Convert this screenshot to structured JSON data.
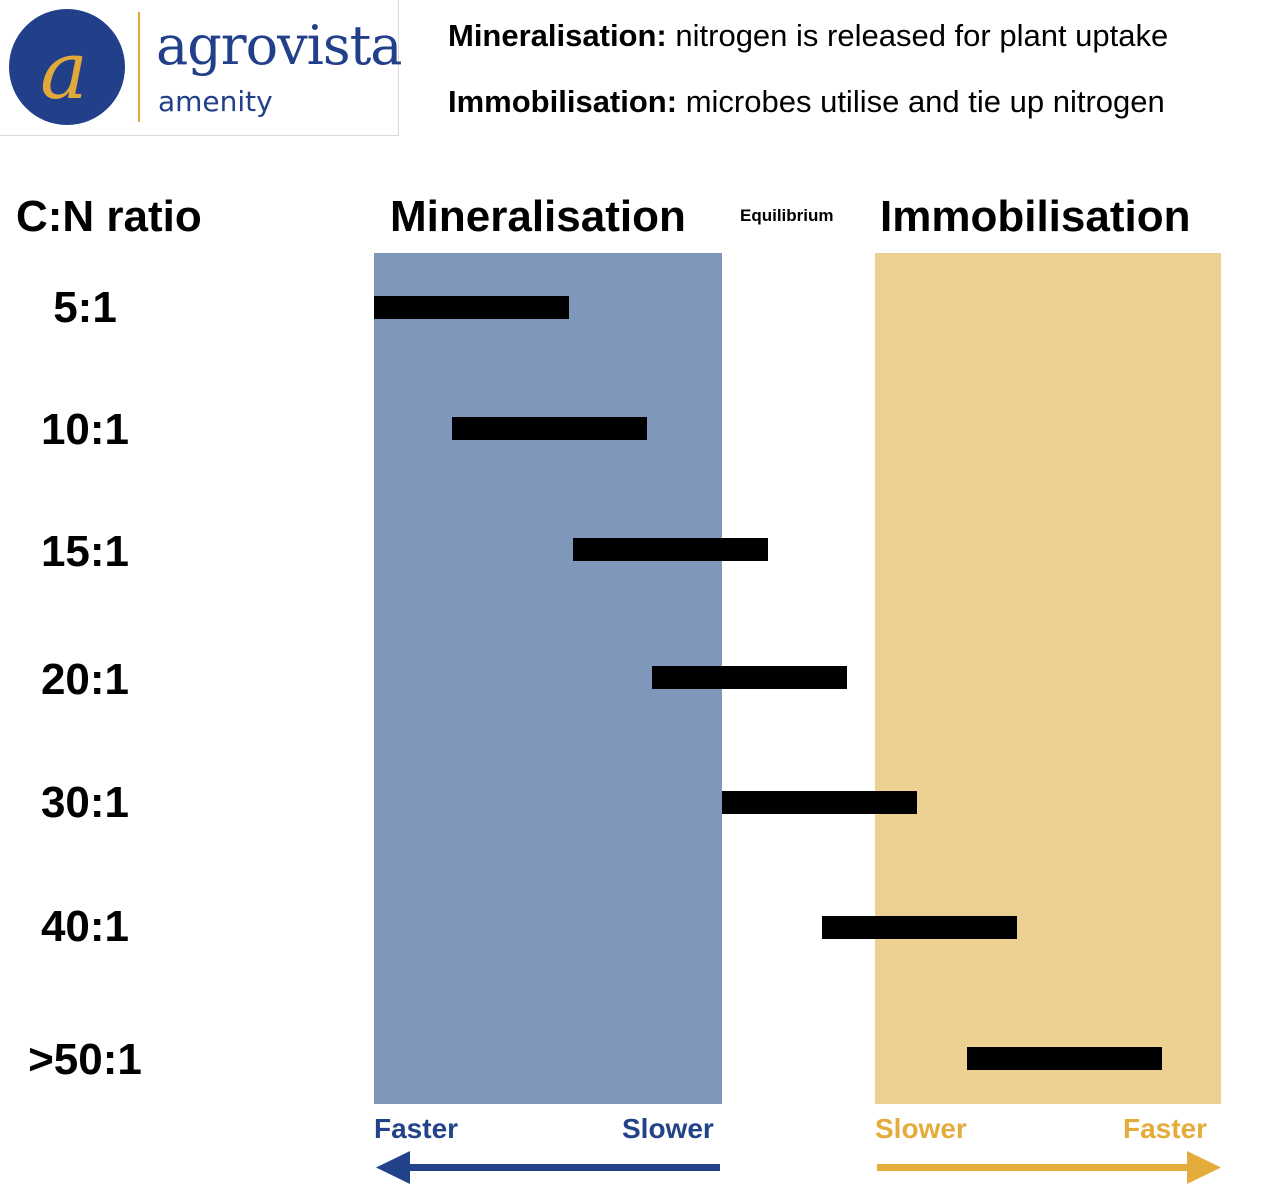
{
  "logo": {
    "name": "agrovista",
    "sub": "amenity",
    "mark_letter": "a",
    "colors": {
      "navy": "#22408a",
      "gold": "#e1a93a"
    }
  },
  "definitions": [
    {
      "term": "Mineralisation:",
      "text": "nitrogen is released for plant uptake"
    },
    {
      "term": "Immobilisation:",
      "text": "microbes utilise and tie up nitrogen"
    }
  ],
  "headers": {
    "cn_ratio": "C:N ratio",
    "mineralisation": "Mineralisation",
    "equilibrium": "Equilibrium",
    "immobilisation": "Immobilisation"
  },
  "rows": [
    {
      "ratio": "5:1"
    },
    {
      "ratio": "10:1"
    },
    {
      "ratio": "15:1"
    },
    {
      "ratio": "20:1"
    },
    {
      "ratio": "30:1"
    },
    {
      "ratio": "40:1"
    },
    {
      "ratio": ">50:1"
    }
  ],
  "scales": {
    "mineralisation": {
      "left": "Faster",
      "right": "Slower",
      "arrow": "left"
    },
    "immobilisation": {
      "left": "Slower",
      "right": "Faster",
      "arrow": "right"
    }
  },
  "colors": {
    "mineralisation_zone": "#7f97bb",
    "immobilisation_zone": "#ecd192",
    "bar": "#000000",
    "blue_text": "#22438a",
    "gold_text": "#e4ad3b"
  }
}
